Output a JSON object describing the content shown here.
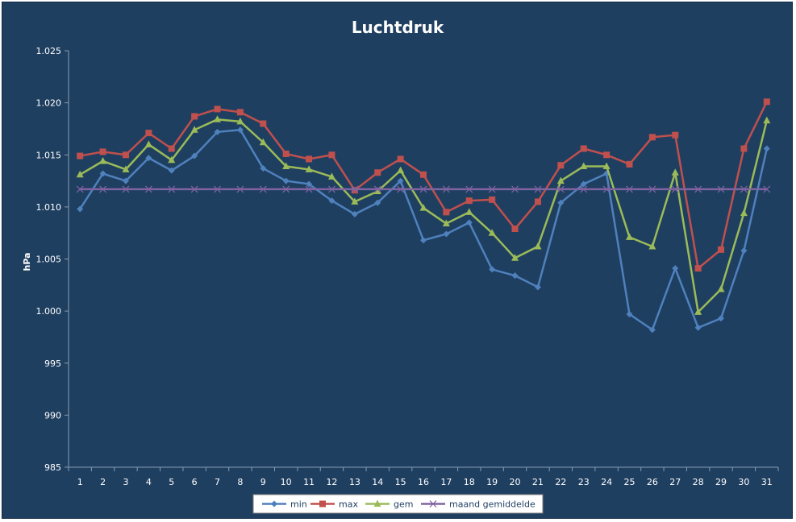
{
  "chart_data": {
    "type": "line",
    "title": "Luchtdruk",
    "xlabel": "",
    "ylabel": "hPa",
    "ylim": [
      985,
      1025
    ],
    "yticks": [
      "985",
      "990",
      "995",
      "1.000",
      "1.005",
      "1.010",
      "1.015",
      "1.020",
      "1.025"
    ],
    "ytick_values": [
      985,
      990,
      995,
      1000,
      1005,
      1010,
      1015,
      1020,
      1025
    ],
    "categories": [
      "1",
      "2",
      "3",
      "4",
      "5",
      "6",
      "7",
      "8",
      "9",
      "10",
      "11",
      "12",
      "13",
      "14",
      "15",
      "16",
      "17",
      "18",
      "19",
      "20",
      "21",
      "22",
      "23",
      "24",
      "25",
      "26",
      "27",
      "28",
      "29",
      "30",
      "31"
    ],
    "grid": false,
    "legend_position": "bottom",
    "series": [
      {
        "name": "min",
        "color": "#4f81bd",
        "marker": "diamond",
        "values": [
          1009.8,
          1013.2,
          1012.5,
          1014.7,
          1013.5,
          1014.9,
          1017.2,
          1017.4,
          1013.7,
          1012.5,
          1012.2,
          1010.6,
          1009.3,
          1010.4,
          1012.5,
          1006.8,
          1007.4,
          1008.5,
          1004.0,
          1003.4,
          1002.3,
          1010.4,
          1012.2,
          1013.2,
          999.7,
          998.2,
          1004.1,
          998.4,
          999.3,
          1005.8,
          1015.6
        ]
      },
      {
        "name": "max",
        "color": "#c0504d",
        "marker": "square",
        "values": [
          1014.9,
          1015.3,
          1015.0,
          1017.1,
          1015.6,
          1018.7,
          1019.4,
          1019.1,
          1018.0,
          1015.1,
          1014.6,
          1015.0,
          1011.6,
          1013.3,
          1014.6,
          1013.1,
          1009.5,
          1010.6,
          1010.7,
          1007.9,
          1010.5,
          1014.0,
          1015.6,
          1015.0,
          1014.1,
          1016.7,
          1016.9,
          1004.1,
          1005.9,
          1015.6,
          1020.1
        ]
      },
      {
        "name": "gem",
        "color": "#9bbb59",
        "marker": "triangle",
        "values": [
          1013.1,
          1014.4,
          1013.6,
          1016.0,
          1014.5,
          1017.4,
          1018.4,
          1018.2,
          1016.2,
          1013.9,
          1013.6,
          1012.9,
          1010.5,
          1011.5,
          1013.5,
          1009.9,
          1008.4,
          1009.5,
          1007.5,
          1005.1,
          1006.2,
          1012.5,
          1013.9,
          1013.9,
          1007.1,
          1006.2,
          1013.3,
          999.9,
          1002.1,
          1009.4,
          1018.3
        ]
      },
      {
        "name": "maand gemiddelde",
        "color": "#8064a2",
        "marker": "x",
        "values": [
          1011.7,
          1011.7,
          1011.7,
          1011.7,
          1011.7,
          1011.7,
          1011.7,
          1011.7,
          1011.7,
          1011.7,
          1011.7,
          1011.7,
          1011.7,
          1011.7,
          1011.7,
          1011.7,
          1011.7,
          1011.7,
          1011.7,
          1011.7,
          1011.7,
          1011.7,
          1011.7,
          1011.7,
          1011.7,
          1011.7,
          1011.7,
          1011.7,
          1011.7,
          1011.7,
          1011.7
        ]
      }
    ]
  }
}
